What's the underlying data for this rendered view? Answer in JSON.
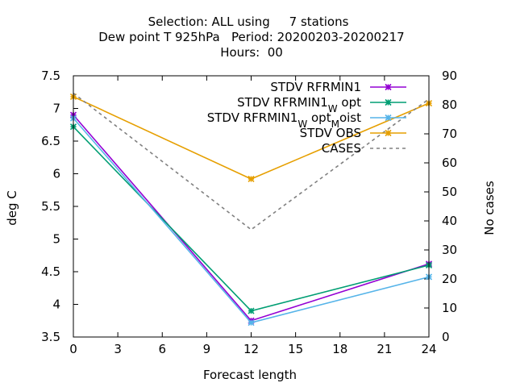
{
  "chart_data": {
    "type": "line",
    "title_lines": [
      "Selection: ALL using     7 stations",
      "Dew point T 925hPa   Period: 20200203-20200217",
      "Hours:  00"
    ],
    "xlabel": "Forecast length",
    "ylabel": "deg C",
    "y2label": "No cases",
    "x": [
      0,
      12,
      24
    ],
    "xlim": [
      0,
      24
    ],
    "ylim": [
      3.5,
      7.5
    ],
    "y2lim": [
      0,
      90
    ],
    "xticks": [
      "0",
      "3",
      "6",
      "9",
      "12",
      "15",
      "18",
      "21",
      "24"
    ],
    "yticks": [
      "3.5",
      "4",
      "4.5",
      "5",
      "5.5",
      "6",
      "6.5",
      "7",
      "7.5"
    ],
    "y2ticks": [
      "0",
      "10",
      "20",
      "30",
      "40",
      "50",
      "60",
      "70",
      "80",
      "90"
    ],
    "legend_position": "top-right",
    "series": [
      {
        "name": "STDV RFRMIN1",
        "name_parts": [
          [
            "STDV RFRMIN1",
            ""
          ]
        ],
        "values": [
          6.9,
          3.75,
          4.62
        ],
        "color": "#9400d3",
        "style": "solid",
        "marker": "x",
        "axis": "y"
      },
      {
        "name": "STDV RFRMIN1 W opt",
        "name_parts": [
          [
            "STDV RFRMIN1",
            ""
          ],
          [
            "W",
            "sub"
          ],
          [
            " opt",
            ""
          ]
        ],
        "values": [
          6.72,
          3.9,
          4.6
        ],
        "color": "#009e73",
        "style": "solid",
        "marker": "x",
        "axis": "y"
      },
      {
        "name": "STDV RFRMIN1 W opt M oist",
        "name_parts": [
          [
            "STDV RFRMIN1",
            ""
          ],
          [
            "W",
            "sub"
          ],
          [
            " opt",
            ""
          ],
          [
            "M",
            "sub"
          ],
          [
            "oist",
            ""
          ]
        ],
        "values": [
          6.85,
          3.72,
          4.42
        ],
        "color": "#56b4e9",
        "style": "solid",
        "marker": "x",
        "axis": "y"
      },
      {
        "name": "STDV OBS",
        "name_parts": [
          [
            "STDV OBS",
            ""
          ]
        ],
        "values": [
          7.18,
          5.92,
          7.08
        ],
        "color": "#e69f00",
        "style": "solid",
        "marker": "x",
        "axis": "y"
      },
      {
        "name": "CASES",
        "name_parts": [
          [
            "CASES",
            ""
          ]
        ],
        "values": [
          84,
          37,
          82
        ],
        "color": "#808080",
        "style": "dashed",
        "marker": "none",
        "axis": "y2"
      }
    ]
  }
}
